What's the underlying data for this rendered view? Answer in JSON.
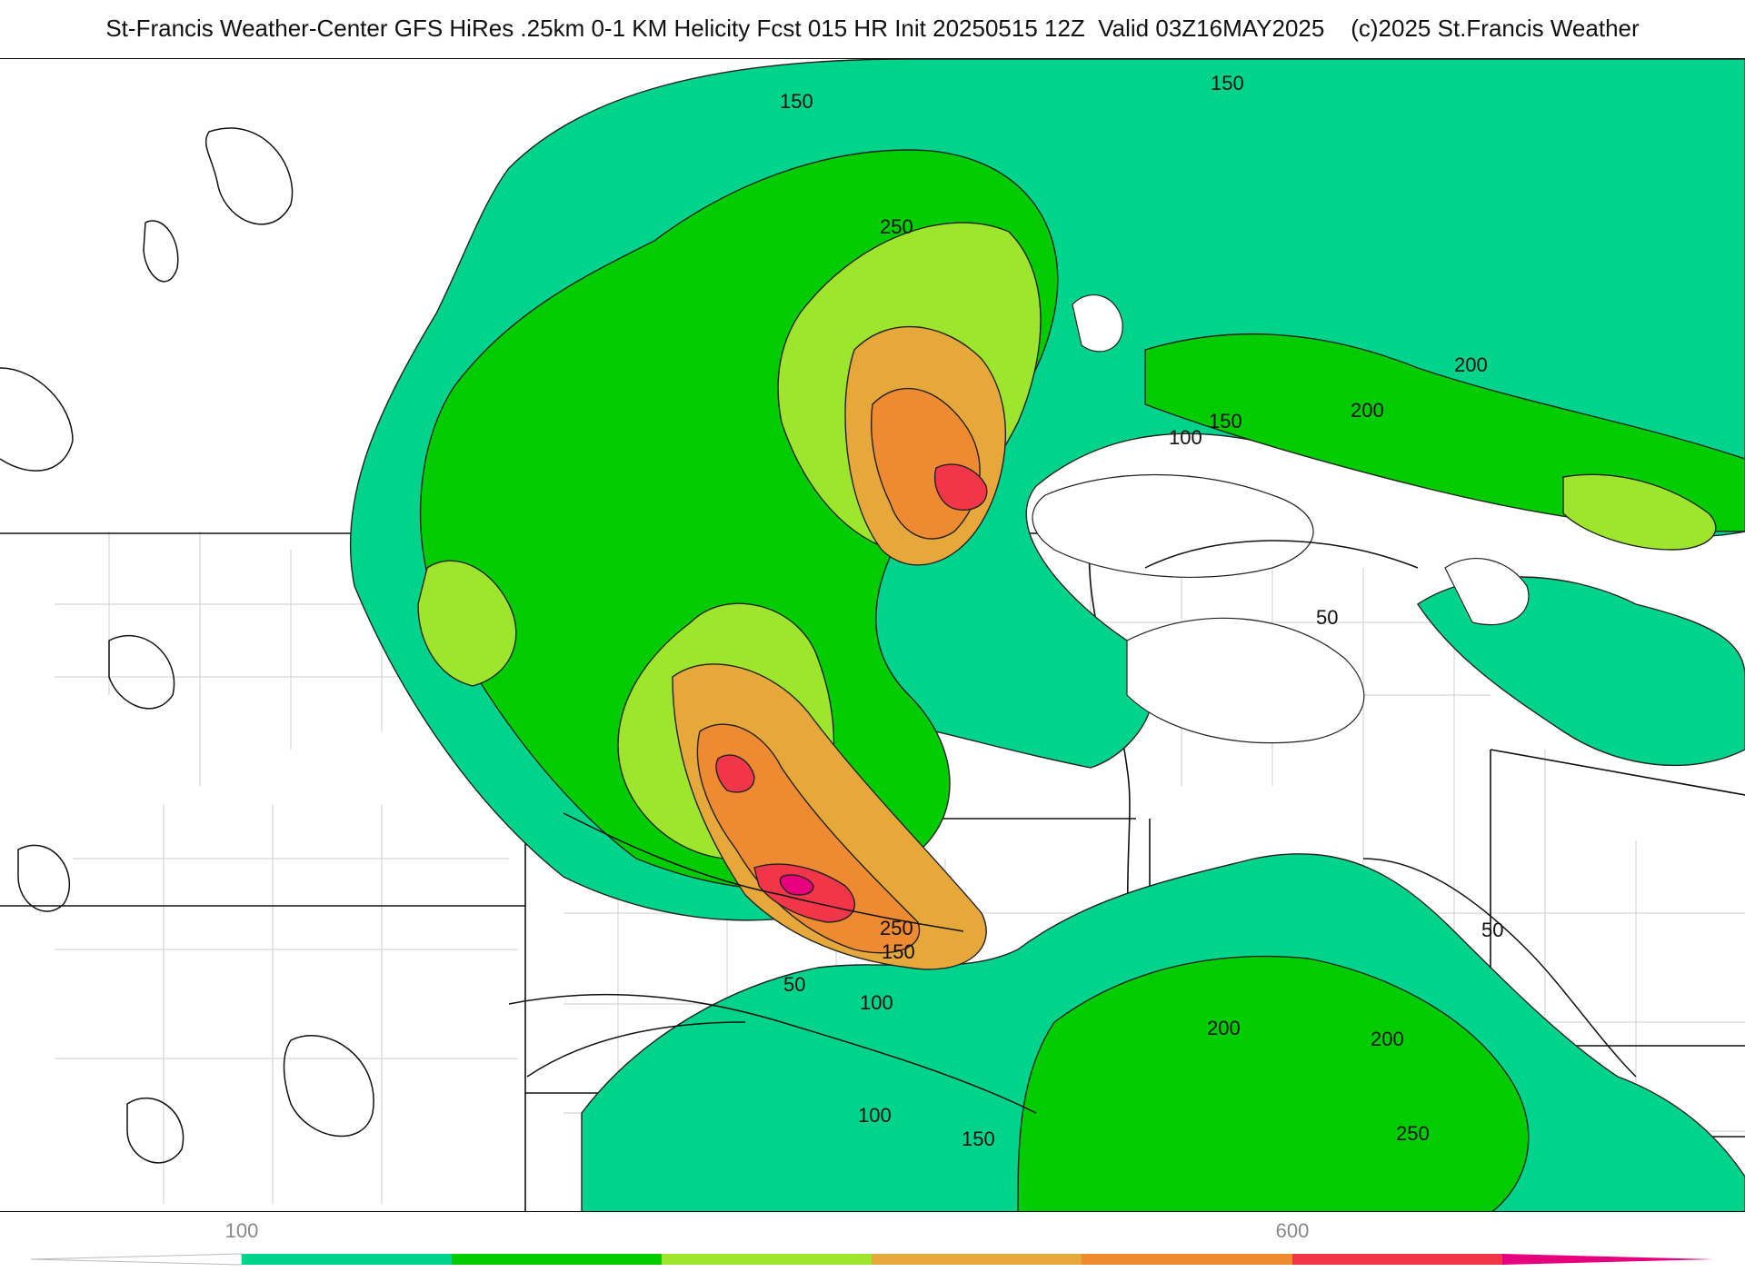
{
  "header": {
    "title": "St-Francis Weather-Center GFS HiRes .25km 0-1 KM Helicity Fcst 015 HR Init 20250515 12Z  Valid 03Z16MAY2025    (c)2025 St.Francis Weather"
  },
  "map": {
    "fill_colors": {
      "c100": "#00d48c",
      "c150": "#00cc00",
      "c200": "#9ee62e",
      "c250": "#e6a83a",
      "c300": "#ee8a32",
      "c400": "#f2364a",
      "c600": "#e6007e"
    },
    "contour_labels": [
      {
        "text": "150"
      },
      {
        "text": "150"
      },
      {
        "text": "250"
      },
      {
        "text": "200"
      },
      {
        "text": "150"
      },
      {
        "text": "200"
      },
      {
        "text": "100"
      },
      {
        "text": "50"
      },
      {
        "text": "250"
      },
      {
        "text": "150"
      },
      {
        "text": "50"
      },
      {
        "text": "100"
      },
      {
        "text": "200"
      },
      {
        "text": "200"
      },
      {
        "text": "50"
      },
      {
        "text": "100"
      },
      {
        "text": "150"
      },
      {
        "text": "250"
      }
    ]
  },
  "colorbar": {
    "ticks": [
      {
        "label": "100"
      },
      {
        "label": "600"
      }
    ],
    "segments": [
      "#ffffff",
      "#00d48c",
      "#00cc00",
      "#9ee62e",
      "#e6a83a",
      "#ee8a32",
      "#f2364a",
      "#e6007e"
    ]
  }
}
